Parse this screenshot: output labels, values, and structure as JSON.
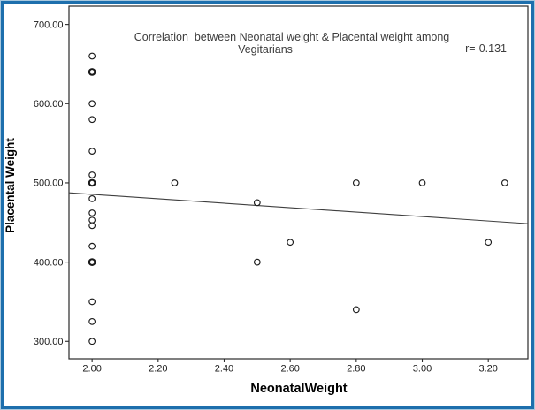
{
  "frame": {
    "outer_border_color": "#a8c8de",
    "inner_border_color": "#1d6fad",
    "background": "#ffffff"
  },
  "chart_data": {
    "type": "scatter",
    "title_line1": "Correlation  between Neonatal weight & Placental weight among",
    "title_line2": "Vegitarians",
    "correlation_label": "r=-0.131",
    "xlabel": "NeonatalWeight",
    "ylabel": "Placental Weight",
    "xlim": [
      1.93,
      3.32
    ],
    "ylim": [
      278,
      723
    ],
    "grid": false,
    "x_ticks": [
      {
        "value": 2.0,
        "label": "2.00"
      },
      {
        "value": 2.2,
        "label": "2.20"
      },
      {
        "value": 2.4,
        "label": "2.40"
      },
      {
        "value": 2.6,
        "label": "2.60"
      },
      {
        "value": 2.8,
        "label": "2.80"
      },
      {
        "value": 3.0,
        "label": "3.00"
      },
      {
        "value": 3.2,
        "label": "3.20"
      }
    ],
    "y_ticks": [
      {
        "value": 300,
        "label": "300.00"
      },
      {
        "value": 400,
        "label": "400.00"
      },
      {
        "value": 500,
        "label": "500.00"
      },
      {
        "value": 600,
        "label": "600.00"
      },
      {
        "value": 700,
        "label": "700.00"
      }
    ],
    "points": [
      {
        "x": 2.0,
        "y": 660,
        "overlap": false
      },
      {
        "x": 2.0,
        "y": 640,
        "overlap": true
      },
      {
        "x": 2.0,
        "y": 600,
        "overlap": false
      },
      {
        "x": 2.0,
        "y": 580,
        "overlap": false
      },
      {
        "x": 2.0,
        "y": 540,
        "overlap": false
      },
      {
        "x": 2.0,
        "y": 510,
        "overlap": false
      },
      {
        "x": 2.0,
        "y": 500,
        "overlap": true
      },
      {
        "x": 2.0,
        "y": 480,
        "overlap": false
      },
      {
        "x": 2.0,
        "y": 462,
        "overlap": false
      },
      {
        "x": 2.0,
        "y": 453,
        "overlap": false
      },
      {
        "x": 2.0,
        "y": 446,
        "overlap": false
      },
      {
        "x": 2.0,
        "y": 420,
        "overlap": false
      },
      {
        "x": 2.0,
        "y": 400,
        "overlap": true
      },
      {
        "x": 2.0,
        "y": 350,
        "overlap": false
      },
      {
        "x": 2.0,
        "y": 325,
        "overlap": false
      },
      {
        "x": 2.0,
        "y": 300,
        "overlap": false
      },
      {
        "x": 2.25,
        "y": 500,
        "overlap": false
      },
      {
        "x": 2.5,
        "y": 475,
        "overlap": false
      },
      {
        "x": 2.5,
        "y": 400,
        "overlap": false
      },
      {
        "x": 2.6,
        "y": 425,
        "overlap": false
      },
      {
        "x": 2.8,
        "y": 500,
        "overlap": false
      },
      {
        "x": 2.8,
        "y": 340,
        "overlap": false
      },
      {
        "x": 3.0,
        "y": 500,
        "overlap": false
      },
      {
        "x": 3.2,
        "y": 425,
        "overlap": false
      },
      {
        "x": 3.25,
        "y": 500,
        "overlap": false
      }
    ],
    "regression_line": {
      "x1": 1.93,
      "y1": 487.5,
      "x2": 3.32,
      "y2": 448.5
    },
    "styles": {
      "point_color": "#1a1a1a",
      "point_fill": "#ffffff",
      "line_color": "#3f3f3f",
      "axis_color": "#2a2a2a"
    }
  }
}
